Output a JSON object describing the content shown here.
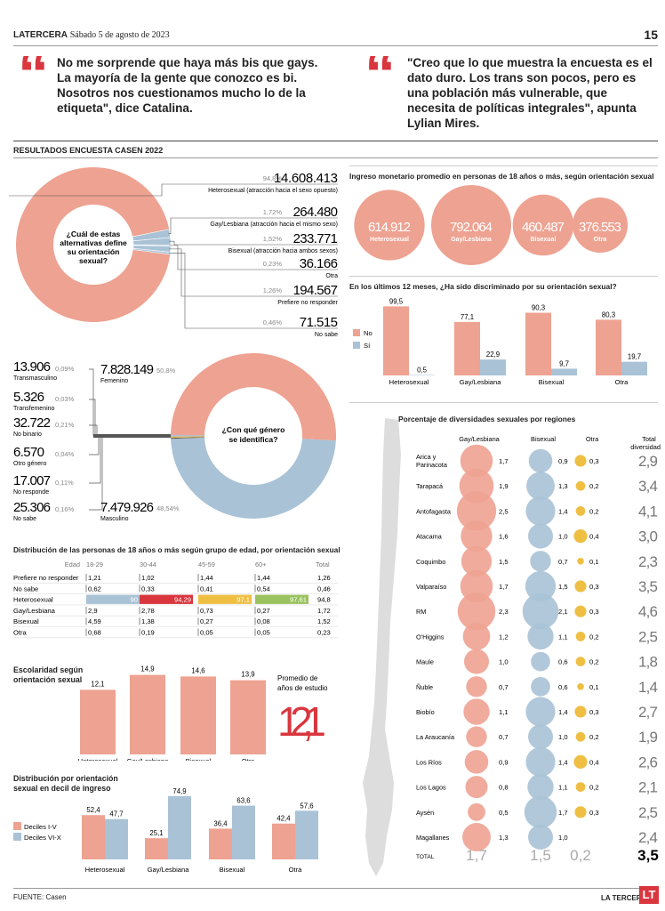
{
  "header": {
    "brand": "LATERCERA",
    "date": "Sábado 5 de agosto de 2023",
    "page": "15"
  },
  "quotes": [
    {
      "text": "No me sorprende que haya más bis que gays. La mayoría de la gente que conozco es bi. Nosotros nos cuestionamos mucho lo de la etiqueta\", dice Catalina."
    },
    {
      "text": "\"Creo que lo que muestra la encuesta es el dato duro. Los trans son pocos, pero es una población más vulnerable, que necesita de políticas integrales\",  apunta Lylian Mires."
    }
  ],
  "section_title": "RESULTADOS ENCUESTA CASEN 2022",
  "colors": {
    "salmon": "#eea291",
    "blue": "#a9c2d6",
    "yellow": "#efbf44",
    "red": "#d9363e",
    "grey": "#777777"
  },
  "chart_data": [
    {
      "id": "orientation-donut",
      "type": "pie",
      "center_label": "¿Cuál de estas alternativas define su orientación sexual?",
      "slices": [
        {
          "name": "Heterosexual (atracción hacia el sexo opuesto)",
          "pct": "94,8%",
          "value": "14.608.413",
          "v": 94.8
        },
        {
          "name": "Gay/Lesbiana (atracción hacia el mismo sexo)",
          "pct": "1,72%",
          "value": "264.480",
          "v": 1.72
        },
        {
          "name": "Bisexual (atracción hacia ambos sexos)",
          "pct": "1,52%",
          "value": "233.771",
          "v": 1.52
        },
        {
          "name": "Otra",
          "pct": "0,23%",
          "value": "36.166",
          "v": 0.23
        },
        {
          "name": "Prefiere no responder",
          "pct": "1,26%",
          "value": "194.567",
          "v": 1.26
        },
        {
          "name": "No sabe",
          "pct": "0,46%",
          "value": "71.515",
          "v": 0.46
        }
      ]
    },
    {
      "id": "income-bubbles",
      "type": "bubble",
      "title": "Ingreso monetario promedio en personas de 18 años o más, según orientación sexual",
      "items": [
        {
          "label": "Heterosexual",
          "value": "614.912",
          "v": 614912
        },
        {
          "label": "Gay/Lesbiana",
          "value": "792.064",
          "v": 792064
        },
        {
          "label": "Bisexual",
          "value": "460.487",
          "v": 460487
        },
        {
          "label": "Otra",
          "value": "376.553",
          "v": 376553
        }
      ]
    },
    {
      "id": "discrimination-bars",
      "type": "bar",
      "title": "En los últimos 12 meses, ¿Ha sido discriminado por su orientación sexual?",
      "categories": [
        "Heterosexual",
        "Gay/Lesbiana",
        "Bisexual",
        "Otra"
      ],
      "series": [
        {
          "name": "No",
          "values": [
            99.5,
            77.1,
            90.3,
            80.3
          ],
          "labels": [
            "99,5",
            "77,1",
            "90,3",
            "80,3"
          ]
        },
        {
          "name": "Sí",
          "values": [
            0.5,
            22.9,
            9.7,
            19.7
          ],
          "labels": [
            "0,5",
            "22,9",
            "9,7",
            "19,7"
          ]
        }
      ]
    },
    {
      "id": "gender-donut",
      "type": "pie",
      "center_label": "¿Con qué género se identifica?",
      "slices": [
        {
          "name": "Transmasculino",
          "value": "13.906",
          "pct": "0,09%",
          "v": 0.09
        },
        {
          "name": "Transfemenino",
          "value": "5.326",
          "pct": "0,03%",
          "v": 0.03
        },
        {
          "name": "No binario",
          "value": "32.722",
          "pct": "0,21%",
          "v": 0.21
        },
        {
          "name": "Otro género",
          "value": "6.570",
          "pct": "0,04%",
          "v": 0.04
        },
        {
          "name": "No responde",
          "value": "17.007",
          "pct": "0,11%",
          "v": 0.11
        },
        {
          "name": "No sabe",
          "value": "25.306",
          "pct": "0,16%",
          "v": 0.16
        },
        {
          "name": "Femenino",
          "value": "7.828.149",
          "pct": "50,8%",
          "v": 50.8
        },
        {
          "name": "Masculino",
          "value": "7.479.926",
          "pct": "48,54%",
          "v": 48.54
        }
      ]
    },
    {
      "id": "age-table",
      "type": "table",
      "title": "Distribución de las personas de 18 años o más según grupo de edad, por orientación sexual",
      "columns": [
        "Edad",
        "18-29",
        "30-44",
        "45-59",
        "60+",
        "Total"
      ],
      "rows": [
        {
          "label": "Prefiere no responder",
          "cells": [
            "1,21",
            "1,02",
            "1,44",
            "1,44",
            "1,26"
          ]
        },
        {
          "label": "No sabe",
          "cells": [
            "0,62",
            "0,33",
            "0,41",
            "0,54",
            "0,46"
          ]
        },
        {
          "label": "Heterosexual",
          "cells": [
            "90",
            "94,29",
            "97,1",
            "97,61",
            "94,8"
          ],
          "highlight": true
        },
        {
          "label": "Gay/Lesbiana",
          "cells": [
            "2,9",
            "2,78",
            "0,73",
            "0,27",
            "1,72"
          ]
        },
        {
          "label": "Bisexual",
          "cells": [
            "4,59",
            "1,38",
            "0,27",
            "0,08",
            "1,52"
          ]
        },
        {
          "label": "Otra",
          "cells": [
            "0,68",
            "0,19",
            "0,05",
            "0,05",
            "0,23"
          ]
        }
      ]
    },
    {
      "id": "schooling-bars",
      "type": "bar",
      "title": "Escolaridad según orientación sexual",
      "categories": [
        "Heterosexual",
        "Gay/Lesbiana",
        "Bisexual",
        "Otra"
      ],
      "values": [
        12.1,
        14.9,
        14.6,
        13.9
      ],
      "labels": [
        "12,1",
        "14,9",
        "14,6",
        "13,9"
      ],
      "avg_label": "Promedio de años de estudio",
      "avg_value": "12,1"
    },
    {
      "id": "decile-bars",
      "type": "bar",
      "title": "Distribución por orientación sexual en decil de ingreso",
      "categories": [
        "Heterosexual",
        "Gay/Lesbiana",
        "Bisexual",
        "Otra"
      ],
      "series": [
        {
          "name": "Deciles I-V",
          "values": [
            52.4,
            25.1,
            36.4,
            42.4
          ],
          "labels": [
            "52,4",
            "25,1",
            "36,4",
            "42,4"
          ]
        },
        {
          "name": "Deciles VI-X",
          "values": [
            47.7,
            74.9,
            63.6,
            57.6
          ],
          "labels": [
            "47,7",
            "74,9",
            "63,6",
            "57,6"
          ]
        }
      ]
    },
    {
      "id": "regions-bubbles",
      "type": "table",
      "title": "Porcentaje de diversidades sexuales por regiones",
      "columns": [
        "Gay/Lesbiana",
        "Bisexual",
        "Otra",
        "Total diversidades"
      ],
      "rows": [
        {
          "region": "Arica y Parinacota",
          "gay": "1,7",
          "bi": "0,9",
          "otra": "0,3",
          "total": "2,9",
          "g": 1.7,
          "b": 0.9,
          "o": 0.3
        },
        {
          "region": "Tarapacá",
          "gay": "1,9",
          "bi": "1,3",
          "otra": "0,2",
          "total": "3,4",
          "g": 1.9,
          "b": 1.3,
          "o": 0.2
        },
        {
          "region": "Antofagasta",
          "gay": "2,5",
          "bi": "1,4",
          "otra": "0,2",
          "total": "4,1",
          "g": 2.5,
          "b": 1.4,
          "o": 0.2
        },
        {
          "region": "Atacama",
          "gay": "1,6",
          "bi": "1,0",
          "otra": "0,4",
          "total": "3,0",
          "g": 1.6,
          "b": 1.0,
          "o": 0.4
        },
        {
          "region": "Coquimbo",
          "gay": "1,5",
          "bi": "0,7",
          "otra": "0,1",
          "total": "2,3",
          "g": 1.5,
          "b": 0.7,
          "o": 0.1
        },
        {
          "region": "Valparaíso",
          "gay": "1,7",
          "bi": "1,5",
          "otra": "0,3",
          "total": "3,5",
          "g": 1.7,
          "b": 1.5,
          "o": 0.3
        },
        {
          "region": "RM",
          "gay": "2,3",
          "bi": "2,1",
          "otra": "0,3",
          "total": "4,6",
          "g": 2.3,
          "b": 2.1,
          "o": 0.3
        },
        {
          "region": "O'Higgins",
          "gay": "1,2",
          "bi": "1,1",
          "otra": "0,2",
          "total": "2,5",
          "g": 1.2,
          "b": 1.1,
          "o": 0.2
        },
        {
          "region": "Maule",
          "gay": "1,0",
          "bi": "0,6",
          "otra": "0,2",
          "total": "1,8",
          "g": 1.0,
          "b": 0.6,
          "o": 0.2
        },
        {
          "region": "Ñuble",
          "gay": "0,7",
          "bi": "0,6",
          "otra": "0,1",
          "total": "1,4",
          "g": 0.7,
          "b": 0.6,
          "o": 0.1
        },
        {
          "region": "Biobío",
          "gay": "1,1",
          "bi": "1,4",
          "otra": "0,3",
          "total": "2,7",
          "g": 1.1,
          "b": 1.4,
          "o": 0.3
        },
        {
          "region": "La Araucanía",
          "gay": "0,7",
          "bi": "1,0",
          "otra": "0,2",
          "total": "1,9",
          "g": 0.7,
          "b": 1.0,
          "o": 0.2
        },
        {
          "region": "Los Ríos",
          "gay": "0,9",
          "bi": "1,4",
          "otra": "0,4",
          "total": "2,6",
          "g": 0.9,
          "b": 1.4,
          "o": 0.4
        },
        {
          "region": "Los Lagos",
          "gay": "0,8",
          "bi": "1,1",
          "otra": "0,2",
          "total": "2,1",
          "g": 0.8,
          "b": 1.1,
          "o": 0.2
        },
        {
          "region": "Aysén",
          "gay": "0,5",
          "bi": "1,7",
          "otra": "0,3",
          "total": "2,5",
          "g": 0.5,
          "b": 1.7,
          "o": 0.3
        },
        {
          "region": "Magallanes",
          "gay": "1,3",
          "bi": "1,0",
          "otra": "",
          "total": "2,4",
          "g": 1.3,
          "b": 1.0,
          "o": 0
        }
      ],
      "total_row": {
        "label": "TOTAL",
        "gay": "1,7",
        "bi": "1,5",
        "otra": "0,2",
        "total": "3,5"
      }
    }
  ],
  "footer": {
    "source": "FUENTE: Casen",
    "brand": "LA TERCERA",
    "logo": "LT"
  }
}
